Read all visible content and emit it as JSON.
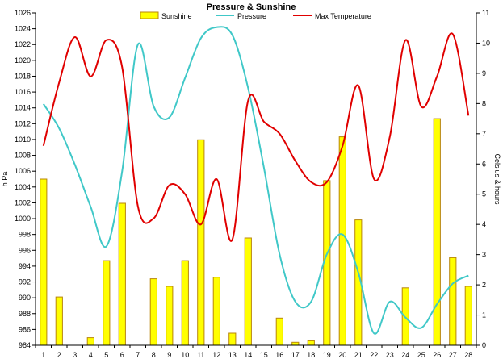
{
  "chart_data": {
    "type": "bar",
    "title": "Pressure & Sunshine",
    "ylabel": "h Pa",
    "y2label": "Celsius & hours",
    "categories": [
      "1",
      "2",
      "3",
      "4",
      "5",
      "6",
      "7",
      "8",
      "9",
      "10",
      "11",
      "12",
      "13",
      "14",
      "15",
      "16",
      "17",
      "18",
      "19",
      "20",
      "21",
      "22",
      "23",
      "24",
      "25",
      "26",
      "27",
      "28"
    ],
    "ylim": [
      984,
      1026
    ],
    "y_ticks": [
      "984",
      "986",
      "988",
      "990",
      "992",
      "994",
      "996",
      "998",
      "1000",
      "1002",
      "1004",
      "1006",
      "1008",
      "1010",
      "1012",
      "1014",
      "1016",
      "1018",
      "1020",
      "1022",
      "1024",
      "1026"
    ],
    "y2lim": [
      0,
      11
    ],
    "y2_ticks": [
      "0",
      "1",
      "2",
      "3",
      "4",
      "5",
      "6",
      "7",
      "8",
      "9",
      "10",
      "11"
    ],
    "grid": false,
    "legend_position": "top",
    "series": [
      {
        "name": "Sunshine",
        "type": "bar",
        "axis": "right",
        "color": "#ffff00",
        "edge_color": "#b8860b",
        "values": [
          5.5,
          1.6,
          0,
          0.25,
          2.8,
          4.7,
          0,
          2.2,
          1.95,
          2.8,
          6.8,
          2.25,
          0.4,
          3.55,
          0,
          0.9,
          0.1,
          0.15,
          5.45,
          6.9,
          4.15,
          0,
          0,
          1.9,
          0,
          7.5,
          2.9,
          1.95
        ]
      },
      {
        "name": "Pressure",
        "type": "line",
        "axis": "left",
        "color": "#40c8c8",
        "values": [
          1014.5,
          1011.4,
          1006.8,
          1001.5,
          996.5,
          1006,
          1022,
          1014.2,
          1012.8,
          1017.8,
          1022.8,
          1024.2,
          1023.2,
          1016.5,
          1006.5,
          995.5,
          989.5,
          989.5,
          995.5,
          998,
          993.2,
          985.5,
          989.5,
          987.5,
          986.2,
          989.2,
          991.8,
          992.8
        ]
      },
      {
        "name": "Max Temperature",
        "type": "line",
        "axis": "right",
        "color": "#e00000",
        "values": [
          6.6,
          8.7,
          10.2,
          8.9,
          10.1,
          9.2,
          4.6,
          4.2,
          5.3,
          5.0,
          4.0,
          5.5,
          3.5,
          8.1,
          7.4,
          7.0,
          6.1,
          5.4,
          5.4,
          6.6,
          8.6,
          5.5,
          6.9,
          10.1,
          7.9,
          8.9,
          10.3,
          7.6
        ]
      }
    ]
  }
}
